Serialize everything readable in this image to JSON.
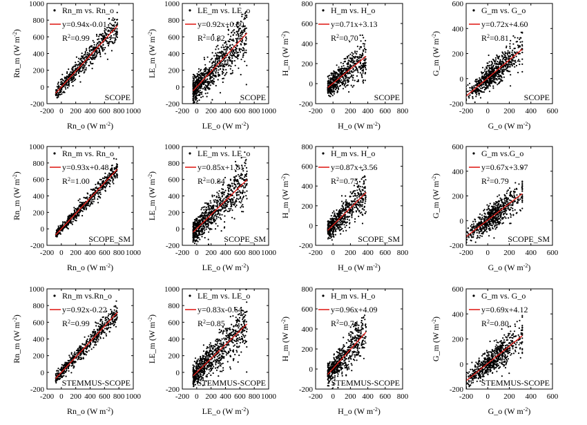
{
  "colors": {
    "points": "#000000",
    "fit_line": "#e0201b",
    "axes": "#000000",
    "background": "#ffffff"
  },
  "chart_data": [
    {
      "type": "scatter",
      "row": 0,
      "col": 0,
      "model": "SCOPE",
      "var": "Rn",
      "xlabel": "Rn_o (W m",
      "ylabel": "Rn_m (W m",
      "xlim": [
        -200,
        1000
      ],
      "ylim": [
        -200,
        1000
      ],
      "xticks": [
        -200,
        0,
        200,
        400,
        600,
        800,
        1000
      ],
      "yticks": [
        -200,
        0,
        200,
        400,
        600,
        800,
        1000
      ],
      "legend_points": "Rn_m vs. Rn_o",
      "equation": "y=0.94x-0.01",
      "r2": "0.99",
      "slope": 0.94,
      "intercept": -0.01,
      "x_range": [
        -80,
        780
      ],
      "scatter": 0.06,
      "n": 600
    },
    {
      "type": "scatter",
      "row": 0,
      "col": 1,
      "model": "SCOPE",
      "var": "LE",
      "xlabel": "LE_o (W m",
      "ylabel": "LE_m (W m",
      "xlim": [
        -200,
        1000
      ],
      "ylim": [
        -200,
        1000
      ],
      "xticks": [
        -200,
        0,
        200,
        400,
        600,
        800,
        1000
      ],
      "yticks": [
        -200,
        0,
        200,
        400,
        600,
        800,
        1000
      ],
      "legend_points": "LE_m vs. LE_o",
      "equation": "y=0.92x+0.80",
      "r2": "0.82",
      "slope": 0.92,
      "intercept": 0.8,
      "x_range": [
        -50,
        700
      ],
      "scatter": 0.12,
      "n": 800
    },
    {
      "type": "scatter",
      "row": 0,
      "col": 2,
      "model": "SCOPE",
      "var": "H",
      "xlabel": "H_o (W m",
      "ylabel": "H_m (W m",
      "xlim": [
        -200,
        800
      ],
      "ylim": [
        -200,
        800
      ],
      "xticks": [
        -200,
        0,
        200,
        400,
        600,
        800
      ],
      "yticks": [
        -200,
        0,
        200,
        400,
        600,
        800
      ],
      "legend_points": "H_m vs. H_o",
      "equation": "y=0.71x+3.13",
      "r2": "0.70",
      "slope": 0.71,
      "intercept": 3.13,
      "x_range": [
        -60,
        380
      ],
      "scatter": 0.09,
      "n": 600
    },
    {
      "type": "scatter",
      "row": 0,
      "col": 3,
      "model": "SCOPE",
      "var": "G",
      "xlabel": "G_o (W m",
      "ylabel": "G_m (W m",
      "xlim": [
        -200,
        600
      ],
      "ylim": [
        -200,
        600
      ],
      "xticks": [
        -200,
        0,
        200,
        400,
        600
      ],
      "yticks": [
        -200,
        0,
        200,
        400,
        600
      ],
      "legend_points": "G_m vs. G_o",
      "equation": "y=0.72x+4.60",
      "r2": "0.81",
      "slope": 0.72,
      "intercept": 4.6,
      "x_range": [
        -200,
        320
      ],
      "scatter": 0.08,
      "n": 700
    },
    {
      "type": "scatter",
      "row": 1,
      "col": 0,
      "model": "SCOPE_SM",
      "var": "Rn",
      "xlabel": "Rn_o (W m",
      "ylabel": "Rn_m (W m",
      "xlim": [
        -200,
        1000
      ],
      "ylim": [
        -200,
        1000
      ],
      "xticks": [
        -200,
        0,
        200,
        400,
        600,
        800,
        1000
      ],
      "yticks": [
        -200,
        0,
        200,
        400,
        600,
        800,
        1000
      ],
      "legend_points": "Rn_m vs. Rn_o",
      "equation": "y=0.93x+0.48",
      "r2": "1.00",
      "slope": 0.93,
      "intercept": 0.48,
      "x_range": [
        -80,
        780
      ],
      "scatter": 0.04,
      "n": 600
    },
    {
      "type": "scatter",
      "row": 1,
      "col": 1,
      "model": "SCOPE_SM",
      "var": "LE",
      "xlabel": "LE_o (W m",
      "ylabel": "LE_m (W m",
      "xlim": [
        -200,
        1000
      ],
      "ylim": [
        -200,
        1000
      ],
      "xticks": [
        -200,
        0,
        200,
        400,
        600,
        800,
        1000
      ],
      "yticks": [
        -200,
        0,
        200,
        400,
        600,
        800,
        1000
      ],
      "legend_points": "LE_m vs. LE_o",
      "equation": "y=0.85x+1.81",
      "r2": "0.84",
      "slope": 0.85,
      "intercept": 1.81,
      "x_range": [
        -50,
        700
      ],
      "scatter": 0.11,
      "n": 800
    },
    {
      "type": "scatter",
      "row": 1,
      "col": 2,
      "model": "SCOPE_SM",
      "var": "H",
      "xlabel": "H_o (W m",
      "ylabel": "H_m (W m",
      "xlim": [
        -200,
        800
      ],
      "ylim": [
        -200,
        800
      ],
      "xticks": [
        -200,
        0,
        200,
        400,
        600,
        800
      ],
      "yticks": [
        -200,
        0,
        200,
        400,
        600,
        800
      ],
      "legend_points": "H_m vs. H_o",
      "equation": "y=0.87x+3.56",
      "r2": "0.75",
      "slope": 0.87,
      "intercept": 3.56,
      "x_range": [
        -60,
        380
      ],
      "scatter": 0.09,
      "n": 600
    },
    {
      "type": "scatter",
      "row": 1,
      "col": 3,
      "model": "SCOPE_SM",
      "var": "G",
      "xlabel": "G_o (W m",
      "ylabel": "G_m (W m",
      "xlim": [
        -200,
        600
      ],
      "ylim": [
        -200,
        600
      ],
      "xticks": [
        -200,
        0,
        200,
        400,
        600
      ],
      "yticks": [
        -200,
        0,
        200,
        400,
        600
      ],
      "legend_points": "G_m vs.G_o",
      "equation": "y=0.67x+3.97",
      "r2": "0.79",
      "slope": 0.67,
      "intercept": 3.97,
      "x_range": [
        -200,
        320
      ],
      "scatter": 0.08,
      "n": 700
    },
    {
      "type": "scatter",
      "row": 2,
      "col": 0,
      "model": "STEMMUS-SCOPE",
      "var": "Rn",
      "xlabel": "Rn_o (W m",
      "ylabel": "Rn_m (W m",
      "xlim": [
        -200,
        1000
      ],
      "ylim": [
        -200,
        1000
      ],
      "xticks": [
        -200,
        0,
        200,
        400,
        600,
        800,
        1000
      ],
      "yticks": [
        -200,
        0,
        200,
        400,
        600,
        800,
        1000
      ],
      "legend_points": "Rn_m vs.Rn_o",
      "equation": "y=0.92x-0.22",
      "r2": "0.99",
      "slope": 0.92,
      "intercept": -0.22,
      "x_range": [
        -80,
        780
      ],
      "scatter": 0.05,
      "n": 600
    },
    {
      "type": "scatter",
      "row": 2,
      "col": 1,
      "model": "STEMMUS-SCOPE",
      "var": "LE",
      "xlabel": "LE_o (W m",
      "ylabel": "LE_m (W m",
      "xlim": [
        -200,
        1000
      ],
      "ylim": [
        -200,
        1000
      ],
      "xticks": [
        -200,
        0,
        200,
        400,
        600,
        800,
        1000
      ],
      "yticks": [
        -200,
        0,
        200,
        400,
        600,
        800,
        1000
      ],
      "legend_points": "LE_m vs. LE_o",
      "equation": "y=0.83x-0.64",
      "r2": "0.85",
      "slope": 0.83,
      "intercept": -0.64,
      "x_range": [
        -50,
        700
      ],
      "scatter": 0.11,
      "n": 800
    },
    {
      "type": "scatter",
      "row": 2,
      "col": 2,
      "model": "STEMMUS-SCOPE",
      "var": "H",
      "xlabel": "H_o (W m",
      "ylabel": "H_m (W m",
      "xlim": [
        -200,
        800
      ],
      "ylim": [
        -200,
        800
      ],
      "xticks": [
        -200,
        0,
        200,
        400,
        600,
        800
      ],
      "yticks": [
        -200,
        0,
        200,
        400,
        600,
        800
      ],
      "legend_points": "H_m vs. H_o",
      "equation": "y=0.96x+4.09",
      "r2": "0.74",
      "slope": 0.96,
      "intercept": 4.09,
      "x_range": [
        -60,
        380
      ],
      "scatter": 0.1,
      "n": 600
    },
    {
      "type": "scatter",
      "row": 2,
      "col": 3,
      "model": "STEMMUS-SCOPE",
      "var": "G",
      "xlabel": "G_o (W m",
      "ylabel": "G_m (W m",
      "xlim": [
        -200,
        600
      ],
      "ylim": [
        -200,
        600
      ],
      "xticks": [
        -200,
        0,
        200,
        400,
        600
      ],
      "yticks": [
        -200,
        0,
        200,
        400,
        600
      ],
      "legend_points": "G_m vs. G_o",
      "equation": "y=0.69x+4.12",
      "r2": "0.80",
      "slope": 0.69,
      "intercept": 4.12,
      "x_range": [
        -200,
        320
      ],
      "scatter": 0.08,
      "n": 700
    }
  ]
}
